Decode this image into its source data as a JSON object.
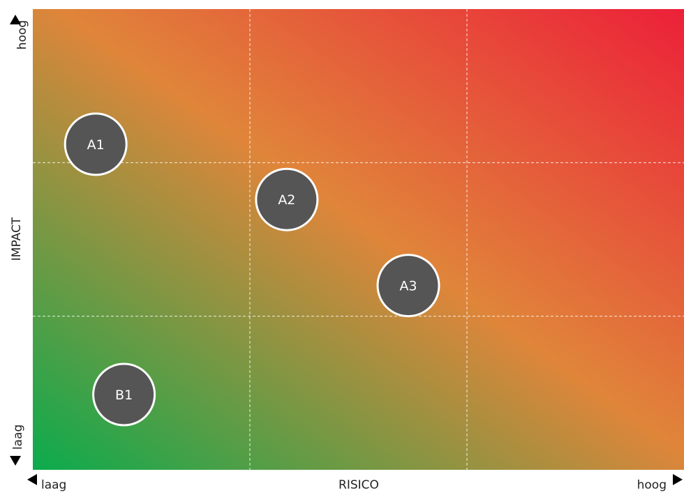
{
  "chart_data": {
    "type": "scatter",
    "title": "",
    "xlabel": "RISICO",
    "ylabel": "IMPACT",
    "x_low_label": "laag",
    "x_high_label": "hoog",
    "y_low_label": "laag",
    "y_high_label": "hoog",
    "xlim": [
      0,
      3
    ],
    "ylim": [
      0,
      3
    ],
    "grid": true,
    "grid_divisions": 3,
    "background": "gradient green (bottom-left) to orange to red (top-right)",
    "colors": {
      "low": "#0bab4d",
      "mid": "#e0853a",
      "high": "#ec2039",
      "bubble_fill": "#555555",
      "bubble_stroke": "#ffffff",
      "label_color": "#ffffff"
    },
    "points": [
      {
        "label": "A1",
        "x": 0.29,
        "y": 2.12
      },
      {
        "label": "A2",
        "x": 1.17,
        "y": 1.76
      },
      {
        "label": "A3",
        "x": 1.73,
        "y": 1.2
      },
      {
        "label": "B1",
        "x": 0.42,
        "y": 0.49
      }
    ]
  }
}
